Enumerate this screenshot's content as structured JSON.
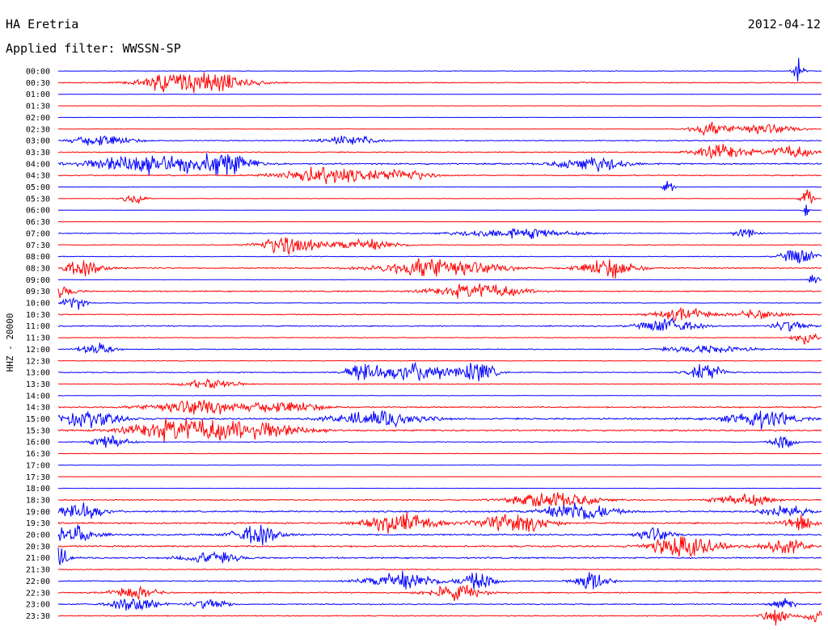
{
  "header": {
    "station": "HA Eretria",
    "date": "2012-04-12",
    "filter": "Applied filter: WWSSN-SP"
  },
  "chart_data": {
    "type": "line",
    "chart_kind": "helicorder",
    "ylabel": "HHZ - 20000",
    "colors": {
      "even_row": "#0000ff",
      "odd_row": "#ff0000"
    },
    "rows": [
      {
        "label": "00:00",
        "level": 0.15,
        "bursts": [
          {
            "pos": 0.97,
            "amp": 1.0,
            "width": 0.01
          }
        ]
      },
      {
        "label": "00:30",
        "level": 0.3,
        "bursts": [
          {
            "pos": 0.14,
            "amp": 0.6,
            "width": 0.05
          },
          {
            "pos": 0.2,
            "amp": 0.75,
            "width": 0.07
          }
        ]
      },
      {
        "label": "01:00",
        "level": 0.1,
        "bursts": []
      },
      {
        "label": "01:30",
        "level": 0.1,
        "bursts": []
      },
      {
        "label": "02:00",
        "level": 0.12,
        "bursts": []
      },
      {
        "label": "02:30",
        "level": 0.15,
        "bursts": [
          {
            "pos": 0.85,
            "amp": 0.5,
            "width": 0.03
          },
          {
            "pos": 0.92,
            "amp": 0.45,
            "width": 0.06
          }
        ]
      },
      {
        "label": "03:00",
        "level": 0.3,
        "bursts": [
          {
            "pos": 0.06,
            "amp": 0.5,
            "width": 0.05
          },
          {
            "pos": 0.38,
            "amp": 0.4,
            "width": 0.05
          }
        ]
      },
      {
        "label": "03:30",
        "level": 0.3,
        "bursts": [
          {
            "pos": 0.87,
            "amp": 0.6,
            "width": 0.05
          },
          {
            "pos": 0.96,
            "amp": 0.5,
            "width": 0.04
          }
        ]
      },
      {
        "label": "04:00",
        "level": 0.45,
        "bursts": [
          {
            "pos": 0.12,
            "amp": 0.9,
            "width": 0.1
          },
          {
            "pos": 0.22,
            "amp": 0.8,
            "width": 0.05
          },
          {
            "pos": 0.7,
            "amp": 0.6,
            "width": 0.06
          }
        ]
      },
      {
        "label": "04:30",
        "level": 0.35,
        "bursts": [
          {
            "pos": 0.35,
            "amp": 0.7,
            "width": 0.08
          },
          {
            "pos": 0.45,
            "amp": 0.5,
            "width": 0.05
          }
        ]
      },
      {
        "label": "05:00",
        "level": 0.12,
        "bursts": [
          {
            "pos": 0.8,
            "amp": 0.5,
            "width": 0.01
          }
        ]
      },
      {
        "label": "05:30",
        "level": 0.15,
        "bursts": [
          {
            "pos": 0.1,
            "amp": 0.4,
            "width": 0.02
          },
          {
            "pos": 0.98,
            "amp": 1.0,
            "width": 0.01
          }
        ]
      },
      {
        "label": "06:00",
        "level": 0.08,
        "bursts": [
          {
            "pos": 0.98,
            "amp": 1.0,
            "width": 0.005
          }
        ]
      },
      {
        "label": "06:30",
        "level": 0.08,
        "bursts": []
      },
      {
        "label": "07:00",
        "level": 0.25,
        "bursts": [
          {
            "pos": 0.6,
            "amp": 0.4,
            "width": 0.1
          },
          {
            "pos": 0.9,
            "amp": 0.4,
            "width": 0.02
          }
        ]
      },
      {
        "label": "07:30",
        "level": 0.25,
        "bursts": [
          {
            "pos": 0.3,
            "amp": 0.8,
            "width": 0.05
          },
          {
            "pos": 0.4,
            "amp": 0.5,
            "width": 0.06
          }
        ]
      },
      {
        "label": "08:00",
        "level": 0.2,
        "bursts": [
          {
            "pos": 0.97,
            "amp": 0.7,
            "width": 0.03
          }
        ]
      },
      {
        "label": "08:30",
        "level": 0.4,
        "bursts": [
          {
            "pos": 0.03,
            "amp": 0.6,
            "width": 0.04
          },
          {
            "pos": 0.5,
            "amp": 0.8,
            "width": 0.1
          },
          {
            "pos": 0.72,
            "amp": 0.8,
            "width": 0.05
          }
        ]
      },
      {
        "label": "09:00",
        "level": 0.12,
        "bursts": [
          {
            "pos": 0.99,
            "amp": 0.4,
            "width": 0.01
          }
        ]
      },
      {
        "label": "09:30",
        "level": 0.35,
        "bursts": [
          {
            "pos": 0.0,
            "amp": 0.5,
            "width": 0.03
          },
          {
            "pos": 0.55,
            "amp": 0.6,
            "width": 0.08
          }
        ]
      },
      {
        "label": "10:00",
        "level": 0.2,
        "bursts": [
          {
            "pos": 0.02,
            "amp": 0.6,
            "width": 0.02
          }
        ]
      },
      {
        "label": "10:30",
        "level": 0.3,
        "bursts": [
          {
            "pos": 0.82,
            "amp": 0.5,
            "width": 0.05
          },
          {
            "pos": 0.92,
            "amp": 0.4,
            "width": 0.04
          }
        ]
      },
      {
        "label": "11:00",
        "level": 0.35,
        "bursts": [
          {
            "pos": 0.8,
            "amp": 0.6,
            "width": 0.05
          },
          {
            "pos": 0.96,
            "amp": 0.5,
            "width": 0.03
          }
        ]
      },
      {
        "label": "11:30",
        "level": 0.25,
        "bursts": [
          {
            "pos": 0.98,
            "amp": 0.6,
            "width": 0.02
          }
        ]
      },
      {
        "label": "12:00",
        "level": 0.25,
        "bursts": [
          {
            "pos": 0.05,
            "amp": 0.5,
            "width": 0.03
          },
          {
            "pos": 0.85,
            "amp": 0.3,
            "width": 0.08
          }
        ]
      },
      {
        "label": "12:30",
        "level": 0.2,
        "bursts": []
      },
      {
        "label": "13:00",
        "level": 0.3,
        "bursts": [
          {
            "pos": 0.4,
            "amp": 0.8,
            "width": 0.03
          },
          {
            "pos": 0.47,
            "amp": 0.8,
            "width": 0.06
          },
          {
            "pos": 0.55,
            "amp": 0.9,
            "width": 0.03
          },
          {
            "pos": 0.85,
            "amp": 0.8,
            "width": 0.03
          }
        ]
      },
      {
        "label": "13:30",
        "level": 0.2,
        "bursts": [
          {
            "pos": 0.2,
            "amp": 0.4,
            "width": 0.05
          }
        ]
      },
      {
        "label": "14:00",
        "level": 0.15,
        "bursts": []
      },
      {
        "label": "14:30",
        "level": 0.4,
        "bursts": [
          {
            "pos": 0.18,
            "amp": 0.6,
            "width": 0.08
          },
          {
            "pos": 0.3,
            "amp": 0.5,
            "width": 0.06
          }
        ]
      },
      {
        "label": "15:00",
        "level": 0.5,
        "bursts": [
          {
            "pos": 0.04,
            "amp": 0.6,
            "width": 0.06
          },
          {
            "pos": 0.42,
            "amp": 0.6,
            "width": 0.08
          },
          {
            "pos": 0.92,
            "amp": 0.7,
            "width": 0.06
          }
        ]
      },
      {
        "label": "15:30",
        "level": 0.5,
        "bursts": [
          {
            "pos": 0.15,
            "amp": 0.8,
            "width": 0.08
          },
          {
            "pos": 0.25,
            "amp": 0.7,
            "width": 0.1
          }
        ]
      },
      {
        "label": "16:00",
        "level": 0.25,
        "bursts": [
          {
            "pos": 0.07,
            "amp": 0.6,
            "width": 0.03
          },
          {
            "pos": 0.95,
            "amp": 0.6,
            "width": 0.02
          }
        ]
      },
      {
        "label": "16:30",
        "level": 0.15,
        "bursts": []
      },
      {
        "label": "17:00",
        "level": 0.1,
        "bursts": []
      },
      {
        "label": "17:30",
        "level": 0.1,
        "bursts": []
      },
      {
        "label": "18:00",
        "level": 0.12,
        "bursts": []
      },
      {
        "label": "18:30",
        "level": 0.35,
        "bursts": [
          {
            "pos": 0.65,
            "amp": 0.6,
            "width": 0.08
          },
          {
            "pos": 0.9,
            "amp": 0.5,
            "width": 0.05
          }
        ]
      },
      {
        "label": "19:00",
        "level": 0.5,
        "bursts": [
          {
            "pos": 0.03,
            "amp": 0.7,
            "width": 0.04
          },
          {
            "pos": 0.68,
            "amp": 0.8,
            "width": 0.06
          },
          {
            "pos": 0.95,
            "amp": 0.5,
            "width": 0.04
          }
        ]
      },
      {
        "label": "19:30",
        "level": 0.5,
        "bursts": [
          {
            "pos": 0.45,
            "amp": 0.8,
            "width": 0.06
          },
          {
            "pos": 0.6,
            "amp": 0.8,
            "width": 0.06
          },
          {
            "pos": 0.97,
            "amp": 0.6,
            "width": 0.03
          }
        ]
      },
      {
        "label": "20:00",
        "level": 0.5,
        "bursts": [
          {
            "pos": 0.02,
            "amp": 0.7,
            "width": 0.04
          },
          {
            "pos": 0.26,
            "amp": 0.8,
            "width": 0.04
          },
          {
            "pos": 0.78,
            "amp": 0.6,
            "width": 0.03
          }
        ]
      },
      {
        "label": "20:30",
        "level": 0.5,
        "bursts": [
          {
            "pos": 0.82,
            "amp": 0.9,
            "width": 0.06
          },
          {
            "pos": 0.95,
            "amp": 0.6,
            "width": 0.04
          }
        ]
      },
      {
        "label": "21:00",
        "level": 0.45,
        "bursts": [
          {
            "pos": 0.0,
            "amp": 0.8,
            "width": 0.02
          },
          {
            "pos": 0.2,
            "amp": 0.5,
            "width": 0.05
          }
        ]
      },
      {
        "label": "21:30",
        "level": 0.3,
        "bursts": []
      },
      {
        "label": "22:00",
        "level": 0.35,
        "bursts": [
          {
            "pos": 0.45,
            "amp": 0.8,
            "width": 0.06
          },
          {
            "pos": 0.55,
            "amp": 0.7,
            "width": 0.03
          },
          {
            "pos": 0.7,
            "amp": 0.8,
            "width": 0.03
          }
        ]
      },
      {
        "label": "22:30",
        "level": 0.35,
        "bursts": [
          {
            "pos": 0.1,
            "amp": 0.5,
            "width": 0.04
          },
          {
            "pos": 0.52,
            "amp": 0.6,
            "width": 0.05
          }
        ]
      },
      {
        "label": "23:00",
        "level": 0.35,
        "bursts": [
          {
            "pos": 0.1,
            "amp": 0.6,
            "width": 0.04
          },
          {
            "pos": 0.2,
            "amp": 0.5,
            "width": 0.03
          },
          {
            "pos": 0.95,
            "amp": 0.5,
            "width": 0.02
          }
        ]
      },
      {
        "label": "23:30",
        "level": 0.3,
        "bursts": [
          {
            "pos": 0.94,
            "amp": 0.8,
            "width": 0.02
          },
          {
            "pos": 0.99,
            "amp": 0.6,
            "width": 0.02
          }
        ]
      }
    ]
  }
}
